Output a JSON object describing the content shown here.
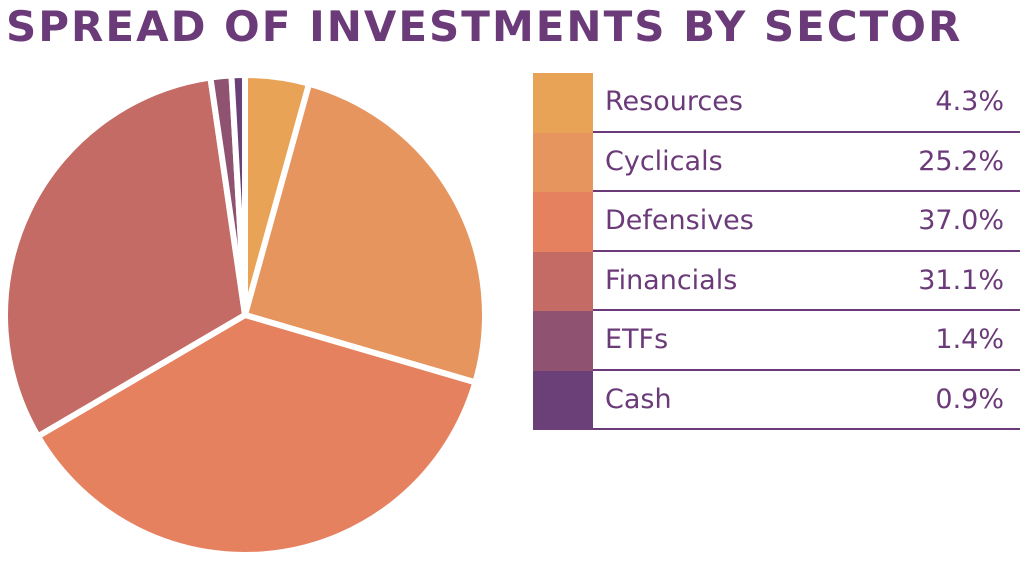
{
  "chart_data": {
    "type": "pie",
    "title": "SPREAD OF INVESTMENTS BY SECTOR",
    "legend_position": "right",
    "slices": [
      {
        "label": "Resources",
        "value": 4.3,
        "display": "4.3%",
        "color": "#E9A356"
      },
      {
        "label": "Cyclicals",
        "value": 25.2,
        "display": "25.2%",
        "color": "#E7955F"
      },
      {
        "label": "Defensives",
        "value": 37.0,
        "display": "37.0%",
        "color": "#E5815F"
      },
      {
        "label": "Financials",
        "value": 31.1,
        "display": "31.1%",
        "color": "#C46B66"
      },
      {
        "label": "ETFs",
        "value": 1.4,
        "display": "1.4%",
        "color": "#8F5270"
      },
      {
        "label": "Cash",
        "value": 0.9,
        "display": "0.9%",
        "color": "#6B3F78"
      }
    ]
  }
}
